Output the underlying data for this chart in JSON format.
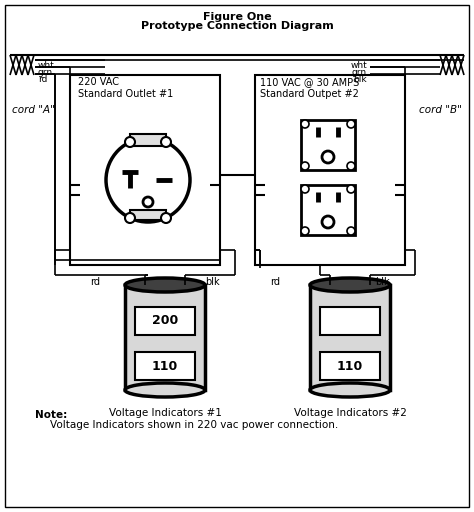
{
  "title_line1": "Figure One",
  "title_line2": "Prototype Connection Diagram",
  "bg_color": "#ffffff",
  "line_color": "#000000",
  "outlet1_label": "220 VAC\nStandard Outlet #1",
  "outlet2_label": "110 VAC @ 30 AMPS\nStandard Outpet #2",
  "cord_a": "cord \"A\"",
  "cord_b": "cord \"B\"",
  "wire_labels_left": [
    "wht",
    "grn",
    "rd"
  ],
  "wire_labels_right": [
    "wht",
    "grn",
    "blk"
  ],
  "rd_label_left": "rd",
  "blk_label_left": "blk",
  "rd_label_right": "rd",
  "blk_label_right": "blk",
  "volt_ind1": "Voltage Indicators #1",
  "volt_ind2": "Voltage Indicators #2",
  "display1_top": "200",
  "display1_bot": "110",
  "display2_top": "",
  "display2_bot": "110",
  "note_line1": "Note:",
  "note_line2": "Voltage Indicators shown in 220 vac power connection."
}
